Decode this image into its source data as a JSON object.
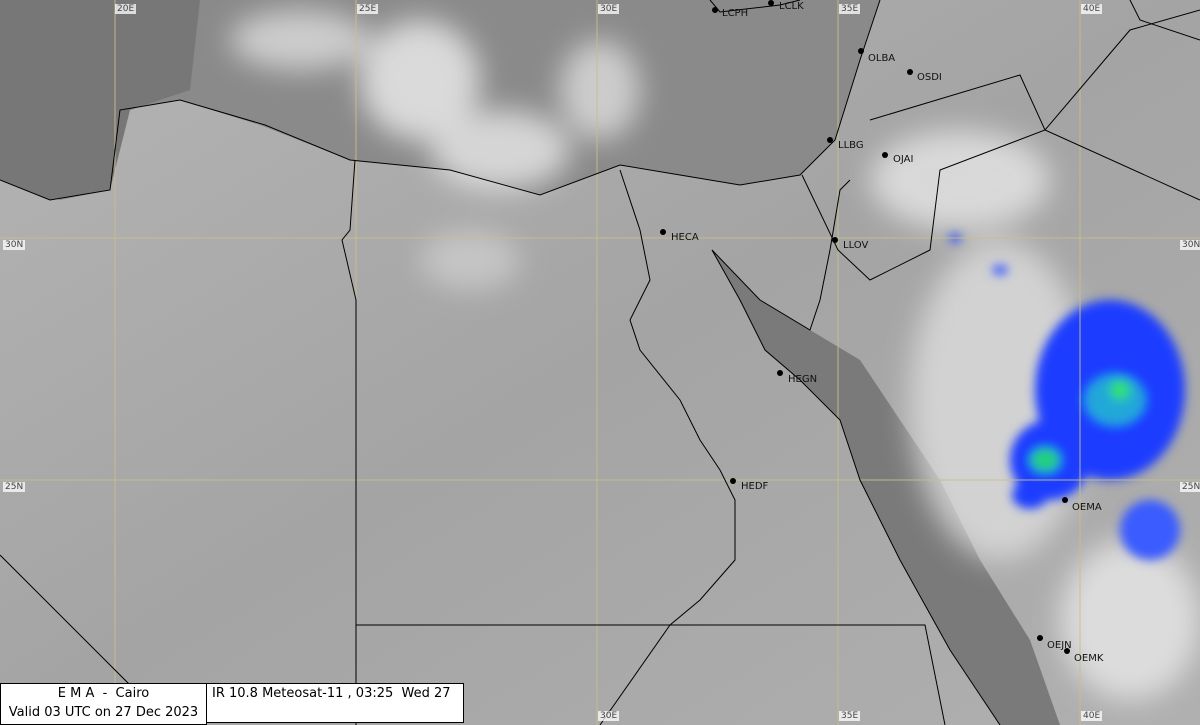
{
  "map": {
    "image_type": "IR 10.8 satellite image",
    "grid_labels": {
      "lon": [
        "20E",
        "25E",
        "30E",
        "35E",
        "40E"
      ],
      "lat": [
        "30N",
        "25N"
      ],
      "bottom_lon": [
        "30E",
        "35E",
        "40E"
      ],
      "right_lat": [
        "30N",
        "25N"
      ]
    },
    "stations": [
      "LCPH",
      "LCLK",
      "OLBA",
      "OSDI",
      "LLBG",
      "OJAI",
      "HECA",
      "LLOV",
      "HEGN",
      "HEDF",
      "OEMA",
      "OEJN",
      "OEMK"
    ],
    "colors": {
      "grid": "#c8c08a",
      "border": "#000000",
      "cloud_cold": "#1a3cff",
      "cloud_colder": "#20d080"
    }
  },
  "info": {
    "agency": "E M A  -  Cairo",
    "valid": "Valid 03 UTC on 27 Dec 2023",
    "product": "IR 10.8 Meteosat-11 , 03:25  Wed 27"
  }
}
